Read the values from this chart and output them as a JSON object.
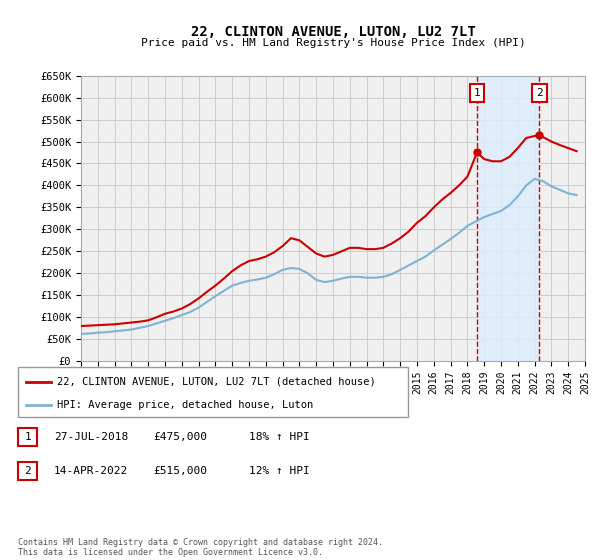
{
  "title": "22, CLINTON AVENUE, LUTON, LU2 7LT",
  "subtitle": "Price paid vs. HM Land Registry's House Price Index (HPI)",
  "ylabel_ticks": [
    0,
    50000,
    100000,
    150000,
    200000,
    250000,
    300000,
    350000,
    400000,
    450000,
    500000,
    550000,
    600000,
    650000
  ],
  "ylabel_labels": [
    "£0",
    "£50K",
    "£100K",
    "£150K",
    "£200K",
    "£250K",
    "£300K",
    "£350K",
    "£400K",
    "£450K",
    "£500K",
    "£550K",
    "£600K",
    "£650K"
  ],
  "xlim": [
    1995,
    2025
  ],
  "ylim": [
    0,
    650000
  ],
  "grid_color": "#cccccc",
  "bg_color": "#ffffff",
  "plot_bg_color": "#f0f0f0",
  "red_line_color": "#cc0000",
  "blue_line_color": "#7fb3d3",
  "marker1_x": 2018.57,
  "marker1_y": 475000,
  "marker2_x": 2022.28,
  "marker2_y": 515000,
  "vline1_x": 2018.57,
  "vline2_x": 2022.28,
  "shade_color": "#ddeeff",
  "dashed_color": "#cc0000",
  "legend_entries": [
    {
      "label": "22, CLINTON AVENUE, LUTON, LU2 7LT (detached house)",
      "color": "#cc0000"
    },
    {
      "label": "HPI: Average price, detached house, Luton",
      "color": "#7fb3d3"
    }
  ],
  "table_rows": [
    {
      "num": "1",
      "date": "27-JUL-2018",
      "price": "£475,000",
      "hpi": "18% ↑ HPI"
    },
    {
      "num": "2",
      "date": "14-APR-2022",
      "price": "£515,000",
      "hpi": "12% ↑ HPI"
    }
  ],
  "footnote": "Contains HM Land Registry data © Crown copyright and database right 2024.\nThis data is licensed under the Open Government Licence v3.0.",
  "hpi_data_x": [
    1995.0,
    1995.5,
    1996.0,
    1996.5,
    1997.0,
    1997.5,
    1998.0,
    1998.5,
    1999.0,
    1999.5,
    2000.0,
    2000.5,
    2001.0,
    2001.5,
    2002.0,
    2002.5,
    2003.0,
    2003.5,
    2004.0,
    2004.5,
    2005.0,
    2005.5,
    2006.0,
    2006.5,
    2007.0,
    2007.5,
    2008.0,
    2008.5,
    2009.0,
    2009.5,
    2010.0,
    2010.5,
    2011.0,
    2011.5,
    2012.0,
    2012.5,
    2013.0,
    2013.5,
    2014.0,
    2014.5,
    2015.0,
    2015.5,
    2016.0,
    2016.5,
    2017.0,
    2017.5,
    2018.0,
    2018.5,
    2019.0,
    2019.5,
    2020.0,
    2020.5,
    2021.0,
    2021.5,
    2022.0,
    2022.5,
    2023.0,
    2023.5,
    2024.0,
    2024.5
  ],
  "hpi_data_y": [
    62000,
    63000,
    65000,
    66000,
    68000,
    70000,
    72000,
    76000,
    80000,
    86000,
    92000,
    98000,
    105000,
    112000,
    122000,
    135000,
    148000,
    160000,
    172000,
    178000,
    183000,
    186000,
    190000,
    198000,
    208000,
    212000,
    210000,
    200000,
    185000,
    180000,
    183000,
    188000,
    192000,
    192000,
    190000,
    190000,
    192000,
    198000,
    208000,
    218000,
    228000,
    238000,
    252000,
    265000,
    278000,
    292000,
    308000,
    318000,
    328000,
    335000,
    342000,
    355000,
    375000,
    400000,
    415000,
    410000,
    398000,
    390000,
    382000,
    378000
  ],
  "red_data_x": [
    1995.0,
    1995.5,
    1996.0,
    1996.5,
    1997.0,
    1997.5,
    1998.0,
    1998.5,
    1999.0,
    1999.5,
    2000.0,
    2000.5,
    2001.0,
    2001.5,
    2002.0,
    2002.5,
    2003.0,
    2003.5,
    2004.0,
    2004.5,
    2005.0,
    2005.5,
    2006.0,
    2006.5,
    2007.0,
    2007.5,
    2008.0,
    2008.5,
    2009.0,
    2009.5,
    2010.0,
    2010.5,
    2011.0,
    2011.5,
    2012.0,
    2012.5,
    2013.0,
    2013.5,
    2014.0,
    2014.5,
    2015.0,
    2015.5,
    2016.0,
    2016.5,
    2017.0,
    2017.5,
    2018.0,
    2018.57,
    2019.0,
    2019.5,
    2020.0,
    2020.5,
    2021.0,
    2021.5,
    2022.28,
    2022.5,
    2023.0,
    2023.5,
    2024.0,
    2024.5
  ],
  "red_data_y": [
    80000,
    81000,
    82000,
    83000,
    84000,
    86000,
    88000,
    90000,
    93000,
    100000,
    108000,
    113000,
    120000,
    130000,
    143000,
    158000,
    172000,
    188000,
    205000,
    218000,
    228000,
    232000,
    238000,
    248000,
    262000,
    280000,
    275000,
    260000,
    245000,
    238000,
    242000,
    250000,
    258000,
    258000,
    255000,
    255000,
    258000,
    268000,
    280000,
    295000,
    315000,
    330000,
    350000,
    368000,
    383000,
    400000,
    420000,
    475000,
    460000,
    455000,
    455000,
    465000,
    485000,
    508000,
    515000,
    510000,
    500000,
    492000,
    485000,
    478000
  ]
}
